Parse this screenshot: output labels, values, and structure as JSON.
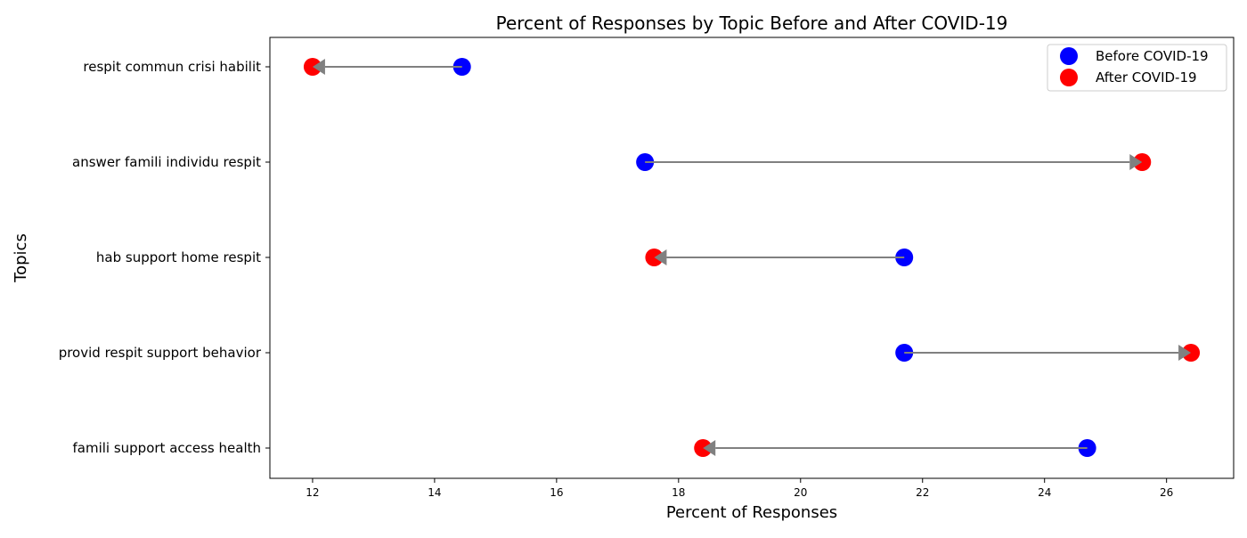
{
  "chart_data": {
    "type": "dumbbell",
    "title": "Percent of Responses by Topic Before and After COVID-19",
    "xlabel": "Percent of Responses",
    "ylabel": "Topics",
    "xlim": [
      11.3,
      27.1
    ],
    "xticks": [
      12,
      14,
      16,
      18,
      20,
      22,
      24,
      26
    ],
    "categories": [
      "respit commun crisi habilit",
      "answer famili individu respit",
      "hab support home respit",
      "provid respit support behavior",
      "famili support access health"
    ],
    "series": [
      {
        "name": "Before COVID-19",
        "color": "#0000ff",
        "values": [
          14.45,
          17.45,
          21.7,
          21.7,
          24.7
        ]
      },
      {
        "name": "After COVID-19",
        "color": "#ff0000",
        "values": [
          12.0,
          25.6,
          17.6,
          26.4,
          18.4
        ]
      }
    ],
    "arrow_color": "#808080",
    "legend_position": "top-right",
    "grid": false
  }
}
